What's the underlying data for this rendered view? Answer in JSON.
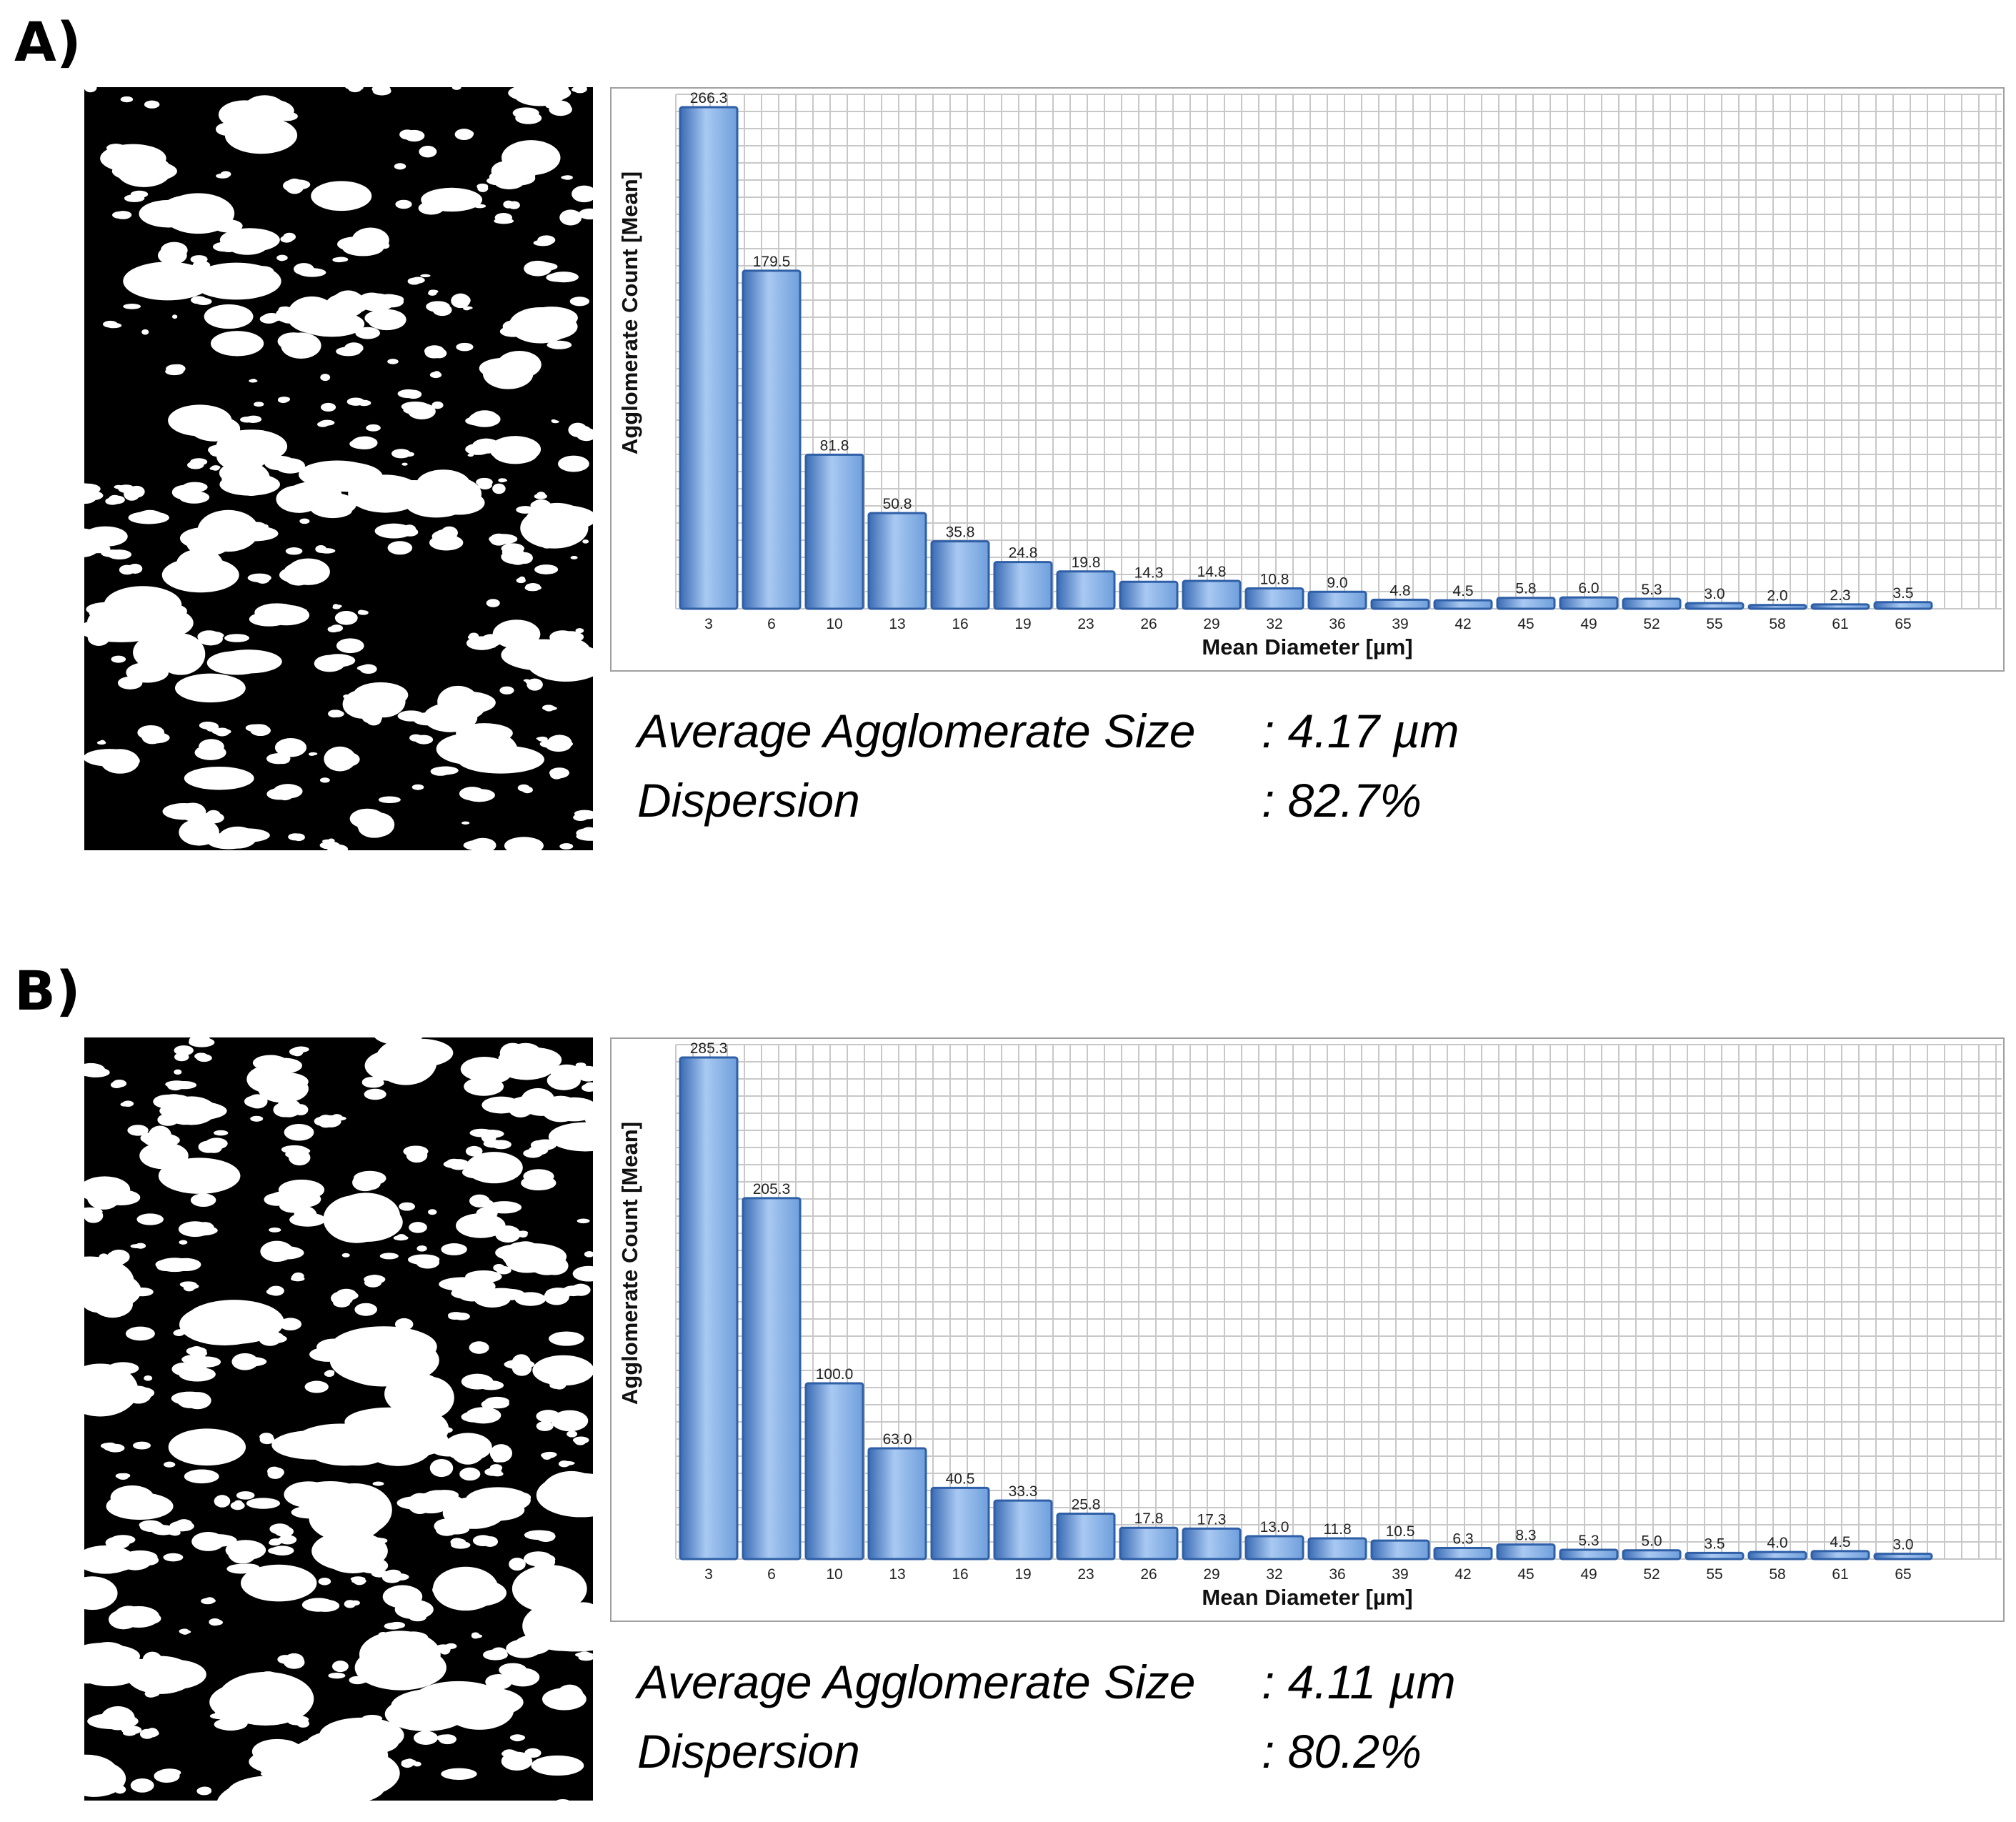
{
  "panels": [
    {
      "label": "A)",
      "avg_label": "Average Agglomerate Size",
      "avg_value": ": 4.17 µm",
      "disp_label": "Dispersion",
      "disp_value": ": 82.7%"
    },
    {
      "label": "B)",
      "avg_label": "Average Agglomerate Size",
      "avg_value": ": 4.11 µm",
      "disp_label": "Dispersion",
      "disp_value": ": 80.2%"
    }
  ],
  "colors": {
    "bar": "#6f9fdc",
    "bar_edge": "#2f5fa6",
    "grid": "#c8c8c8",
    "image_bg": "#000000",
    "image_fg": "#ffffff"
  },
  "chart_data": [
    {
      "type": "bar",
      "xlabel": "Mean Diameter [µm]",
      "ylabel": "Agglomerate Count  [Mean]",
      "categories": [
        "3",
        "6",
        "10",
        "13",
        "16",
        "19",
        "23",
        "26",
        "29",
        "32",
        "36",
        "39",
        "42",
        "45",
        "49",
        "52",
        "55",
        "58",
        "61",
        "65"
      ],
      "values": [
        266.3,
        179.5,
        81.8,
        50.8,
        35.8,
        24.8,
        19.8,
        14.3,
        14.8,
        10.8,
        9.0,
        4.8,
        4.5,
        5.8,
        6.0,
        5.3,
        3.0,
        2.0,
        2.3,
        3.5
      ],
      "value_labels": [
        "266.3",
        "179.5",
        "81.8",
        "50.8",
        "35.8",
        "24.8",
        "19.8",
        "14.3",
        "14.8",
        "10.8",
        "9.0",
        "4.8",
        "4.5",
        "5.8",
        "6.0",
        "5.3",
        "3.0",
        "2.0",
        "2.3",
        "3.5"
      ],
      "ylim": [
        0,
        266.3
      ],
      "grid": true
    },
    {
      "type": "bar",
      "xlabel": "Mean Diameter [µm]",
      "ylabel": "Agglomerate Count  [Mean]",
      "categories": [
        "3",
        "6",
        "10",
        "13",
        "16",
        "19",
        "23",
        "26",
        "29",
        "32",
        "36",
        "39",
        "42",
        "45",
        "49",
        "52",
        "55",
        "58",
        "61",
        "65"
      ],
      "values": [
        285.3,
        205.3,
        100.0,
        63.0,
        40.5,
        33.3,
        25.8,
        17.8,
        17.3,
        13.0,
        11.8,
        10.5,
        6.3,
        8.3,
        5.3,
        5.0,
        3.5,
        4.0,
        4.5,
        3.0
      ],
      "value_labels": [
        "285.3",
        "205.3",
        "100.0",
        "63.0",
        "40.5",
        "33.3",
        "25.8",
        "17.8",
        "17.3",
        "13.0",
        "11.8",
        "10.5",
        "6.3",
        "8.3",
        "5.3",
        "5.0",
        "3.5",
        "4.0",
        "4.5",
        "3.0"
      ],
      "ylim": [
        0,
        285.3
      ],
      "grid": true
    }
  ]
}
